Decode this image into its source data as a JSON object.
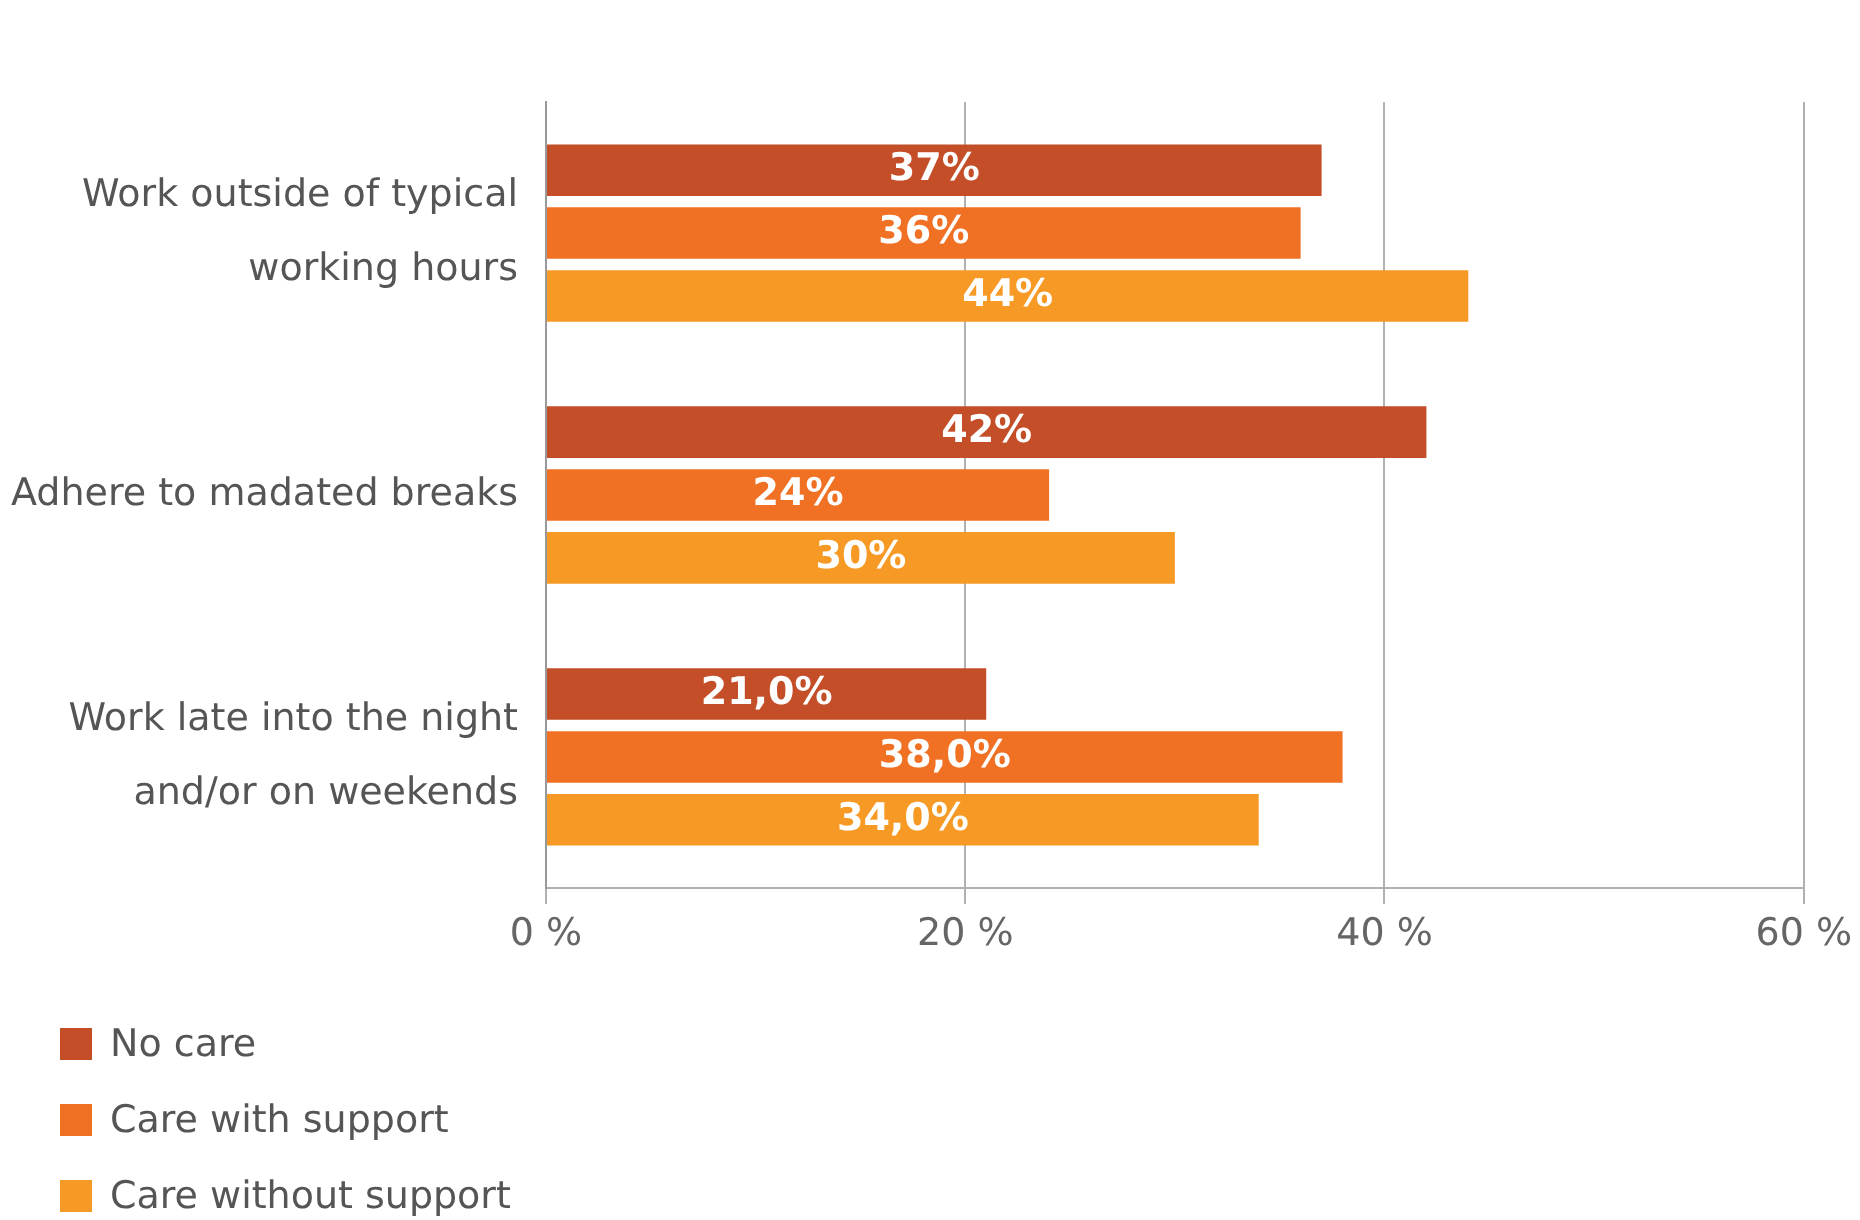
{
  "chart_data": {
    "type": "bar",
    "orientation": "horizontal",
    "categories": [
      "Work outside of typical\nworking hours",
      "Adhere to madated breaks",
      "Work late into the night\nand/or on weekends"
    ],
    "series": [
      {
        "name": "No care",
        "color": "#c44e27",
        "values": [
          37,
          42,
          21
        ],
        "value_labels": [
          "37%",
          "42%",
          "21,0%"
        ]
      },
      {
        "name": "Care with support",
        "color": "#f07124",
        "values": [
          36,
          24,
          38
        ],
        "value_labels": [
          "36%",
          "24%",
          "38,0%"
        ]
      },
      {
        "name": "Care without support",
        "color": "#f69a25",
        "values": [
          44,
          30,
          34
        ],
        "value_labels": [
          "44%",
          "30%",
          "34,0%"
        ]
      }
    ],
    "xlim": [
      0,
      60
    ],
    "xticks": [
      {
        "value": 0,
        "label": "0 %"
      },
      {
        "value": 20,
        "label": "20 %"
      },
      {
        "value": 40,
        "label": "40 %"
      },
      {
        "value": 60,
        "label": "60 %"
      }
    ],
    "grid": "x",
    "legend": "bottom left"
  }
}
